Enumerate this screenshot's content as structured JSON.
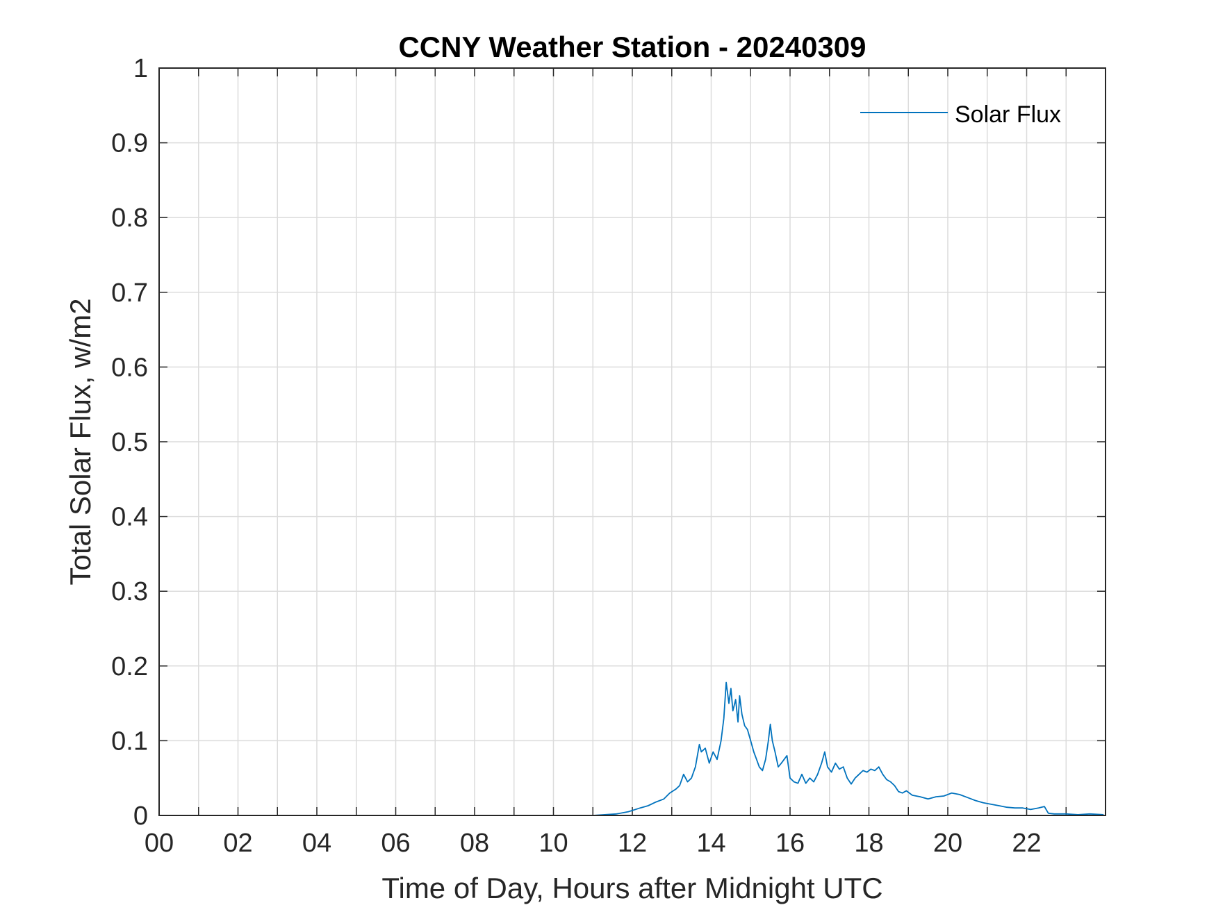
{
  "chart_data": {
    "type": "line",
    "title": "CCNY Weather Station - 20240309",
    "xlabel": "Time of Day, Hours after Midnight UTC",
    "ylabel": "Total Solar Flux, w/m2",
    "xlim": [
      0,
      24
    ],
    "ylim": [
      0,
      1
    ],
    "grid": true,
    "legend_location": "top-right",
    "x_ticks": [
      0,
      2,
      4,
      6,
      8,
      10,
      12,
      14,
      16,
      18,
      20,
      22
    ],
    "x_tick_labels": [
      "00",
      "02",
      "04",
      "06",
      "08",
      "10",
      "12",
      "14",
      "16",
      "18",
      "20",
      "22"
    ],
    "y_ticks": [
      0,
      0.1,
      0.2,
      0.3,
      0.4,
      0.5,
      0.6,
      0.7,
      0.8,
      0.9,
      1
    ],
    "y_tick_labels": [
      "0",
      "0.1",
      "0.2",
      "0.3",
      "0.4",
      "0.5",
      "0.6",
      "0.7",
      "0.8",
      "0.9",
      "1"
    ],
    "series": [
      {
        "name": "Solar Flux",
        "color": "#0072BD",
        "x": [
          0,
          11.0,
          11.3,
          11.6,
          11.9,
          12.2,
          12.4,
          12.6,
          12.8,
          12.95,
          13.1,
          13.2,
          13.3,
          13.4,
          13.5,
          13.6,
          13.7,
          13.75,
          13.85,
          13.95,
          14.05,
          14.15,
          14.25,
          14.32,
          14.38,
          14.45,
          14.5,
          14.55,
          14.62,
          14.68,
          14.72,
          14.78,
          14.85,
          14.92,
          15.0,
          15.08,
          15.15,
          15.22,
          15.3,
          15.38,
          15.45,
          15.5,
          15.55,
          15.62,
          15.7,
          15.78,
          15.85,
          15.92,
          16.0,
          16.1,
          16.2,
          16.3,
          16.4,
          16.5,
          16.6,
          16.7,
          16.8,
          16.88,
          16.95,
          17.05,
          17.15,
          17.25,
          17.35,
          17.45,
          17.55,
          17.65,
          17.75,
          17.85,
          17.95,
          18.05,
          18.15,
          18.25,
          18.35,
          18.45,
          18.55,
          18.65,
          18.75,
          18.85,
          18.95,
          19.1,
          19.3,
          19.5,
          19.7,
          19.9,
          20.1,
          20.3,
          20.5,
          20.7,
          20.9,
          21.1,
          21.3,
          21.5,
          21.7,
          21.9,
          22.1,
          22.3,
          22.45,
          22.55,
          22.7,
          23.0,
          23.3,
          23.6,
          23.95
        ],
        "values": [
          0.0,
          0.0,
          0.001,
          0.002,
          0.005,
          0.01,
          0.013,
          0.018,
          0.022,
          0.03,
          0.035,
          0.04,
          0.055,
          0.045,
          0.05,
          0.065,
          0.095,
          0.085,
          0.09,
          0.07,
          0.085,
          0.075,
          0.1,
          0.13,
          0.178,
          0.15,
          0.17,
          0.14,
          0.155,
          0.125,
          0.16,
          0.135,
          0.12,
          0.115,
          0.1,
          0.085,
          0.075,
          0.065,
          0.06,
          0.075,
          0.1,
          0.122,
          0.1,
          0.085,
          0.065,
          0.07,
          0.075,
          0.08,
          0.05,
          0.045,
          0.043,
          0.055,
          0.043,
          0.05,
          0.045,
          0.055,
          0.07,
          0.085,
          0.065,
          0.058,
          0.07,
          0.062,
          0.065,
          0.05,
          0.042,
          0.05,
          0.055,
          0.06,
          0.058,
          0.062,
          0.06,
          0.065,
          0.055,
          0.048,
          0.045,
          0.04,
          0.032,
          0.03,
          0.033,
          0.027,
          0.025,
          0.022,
          0.025,
          0.026,
          0.03,
          0.028,
          0.024,
          0.02,
          0.017,
          0.015,
          0.013,
          0.011,
          0.01,
          0.01,
          0.008,
          0.01,
          0.012,
          0.003,
          0.002,
          0.002,
          0.001,
          0.002,
          0.001
        ]
      }
    ]
  }
}
